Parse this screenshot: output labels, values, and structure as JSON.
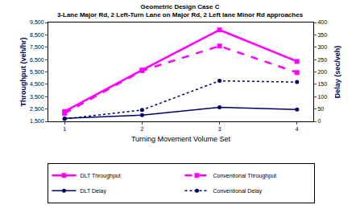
{
  "chart_data": {
    "type": "line",
    "title": "Geometric Design Case C",
    "subtitle": "3-Lane Major Rd, 2 Left-Turn Lane on Major Rd, 2 Left lane Minor Rd approaches",
    "x_label": "Turning Movement Volume Set",
    "y_label": "Throughput (veh/hr)",
    "y2_label": "Delay (sec/veh)",
    "categories": [
      "1",
      "2",
      "3",
      "4"
    ],
    "series": [
      {
        "name": "DLT Throughput",
        "color": "#ff00ff",
        "line_style": "solid",
        "marker": "square",
        "values": [
          2300,
          5650,
          8900,
          6350
        ]
      },
      {
        "name": "Conventional Throughput",
        "color": "#ff00ff",
        "line_style": "dash",
        "marker": "square",
        "values": [
          2150,
          5600,
          7600,
          5450
        ]
      },
      {
        "name": "DLT Delay",
        "color": "#000066",
        "line_style": "solid",
        "marker": "circle",
        "axis": "y2",
        "values": [
          12,
          25,
          57,
          48
        ]
      },
      {
        "name": "Conventional Delay",
        "color": "#000066",
        "line_style": "dot",
        "marker": "circle",
        "axis": "y2",
        "values": [
          10,
          46,
          164,
          159
        ]
      }
    ],
    "ylim": [
      1500,
      9500
    ],
    "yticks": [
      {
        "value": 1500,
        "label": "1,500"
      },
      {
        "value": 2500,
        "label": "2,500"
      },
      {
        "value": 3500,
        "label": "3,500"
      },
      {
        "value": 4500,
        "label": "4,500"
      },
      {
        "value": 5500,
        "label": "5,500"
      },
      {
        "value": 6500,
        "label": "6,500"
      },
      {
        "value": 7500,
        "label": "7,500"
      },
      {
        "value": 8500,
        "label": "8,500"
      },
      {
        "value": 9500,
        "label": "9,500"
      }
    ],
    "y2lim": [
      0,
      400
    ],
    "y2ticks": [
      0,
      50,
      100,
      150,
      200,
      250,
      300,
      350,
      400
    ],
    "grid": false,
    "legend": "bottom"
  }
}
